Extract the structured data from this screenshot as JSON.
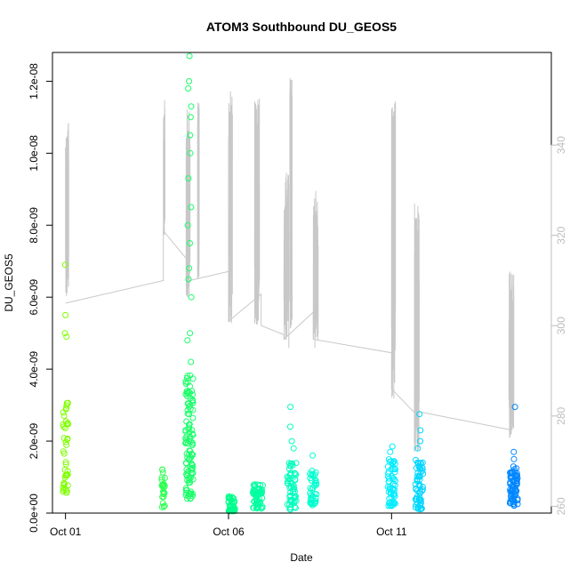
{
  "chart_data": {
    "type": "scatter",
    "title": "ATOM3 Southbound DU_GEOS5",
    "xlabel": "Date",
    "ylabel": "DU_GEOS5",
    "x_ticks": [
      {
        "value": 1,
        "label": "Oct 01"
      },
      {
        "value": 6,
        "label": "Oct 06"
      },
      {
        "value": 11,
        "label": "Oct 11"
      }
    ],
    "xlim": [
      0.6,
      15.9
    ],
    "ylim": [
      0,
      1.28e-08
    ],
    "y_ticks": [
      {
        "value": 0,
        "label": "0.0e+00"
      },
      {
        "value": 2e-09,
        "label": "2.0e-09"
      },
      {
        "value": 4e-09,
        "label": "4.0e-09"
      },
      {
        "value": 6e-09,
        "label": "6.0e-09"
      },
      {
        "value": 8e-09,
        "label": "8.0e-09"
      },
      {
        "value": 1e-08,
        "label": "1.0e-08"
      },
      {
        "value": 1.2e-08,
        "label": "1.2e-08"
      }
    ],
    "y2lim": [
      258.5,
      360.5
    ],
    "y2_ticks": [
      {
        "value": 260,
        "label": "260"
      },
      {
        "value": 280,
        "label": "280"
      },
      {
        "value": 300,
        "label": "300"
      },
      {
        "value": 320,
        "label": "320"
      },
      {
        "value": 340,
        "label": "340"
      }
    ],
    "grid": false,
    "colors": {
      "axis": "#000000",
      "right_axis": "#bdbdbd",
      "secondary_line": "#c8c8c8"
    },
    "secondary_series": {
      "type": "line",
      "axis": "right",
      "color": "#c8c8c8",
      "segments": [
        {
          "x": [
            1.0,
            1.1
          ],
          "y": [
            305,
            345
          ]
        },
        {
          "x": [
            4.0,
            4.05
          ],
          "y": [
            320,
            350
          ]
        },
        {
          "x": [
            4.7,
            4.82
          ],
          "y": [
            305,
            348
          ]
        },
        {
          "x": [
            5.05,
            5.1
          ],
          "y": [
            310,
            350
          ]
        },
        {
          "x": [
            6.0,
            6.12
          ],
          "y": [
            300,
            352
          ]
        },
        {
          "x": [
            6.8,
            6.95
          ],
          "y": [
            300,
            351
          ]
        },
        {
          "x": [
            7.7,
            7.85
          ],
          "y": [
            295,
            334
          ]
        },
        {
          "x": [
            7.88,
            7.95
          ],
          "y": [
            298,
            355
          ]
        },
        {
          "x": [
            8.6,
            8.75
          ],
          "y": [
            295,
            330
          ]
        },
        {
          "x": [
            11.0,
            11.12
          ],
          "y": [
            282,
            350
          ]
        },
        {
          "x": [
            11.7,
            11.85
          ],
          "y": [
            272,
            328
          ]
        },
        {
          "x": [
            14.6,
            14.75
          ],
          "y": [
            275,
            312
          ]
        }
      ],
      "connectors": {
        "x": [
          1.0,
          4.0,
          4.0,
          4.8,
          4.8,
          6.0,
          6.0,
          7.0,
          7.0,
          7.7,
          7.7,
          8.6,
          8.6,
          11.0,
          11.0,
          11.8,
          11.8,
          14.6
        ],
        "y": [
          305,
          310,
          321,
          314,
          310,
          312,
          301,
          307,
          300,
          298,
          297,
          303,
          297,
          294,
          286,
          280,
          281,
          277
        ]
      }
    },
    "points": {
      "color_gradient": [
        "#7fff00",
        "#00ff7f",
        "#00ffff",
        "#0080ff"
      ],
      "clusters": [
        {
          "x_center": 1.0,
          "x_spread": 0.08,
          "y_min": 5.5e-10,
          "y_max": 3.2e-09,
          "extra_high": [
            4.9e-09,
            5e-09,
            5.5e-09,
            6.9e-09
          ],
          "n": 40
        },
        {
          "x_center": 4.0,
          "x_spread": 0.05,
          "y_min": 1.5e-10,
          "y_max": 1.25e-09,
          "extra_high": [],
          "n": 25
        },
        {
          "x_center": 4.8,
          "x_spread": 0.12,
          "y_min": 4e-10,
          "y_max": 4e-09,
          "extra_high": [
            4.2e-09,
            4.8e-09,
            5e-09,
            6e-09,
            6.5e-09,
            6.8e-09,
            7.5e-09,
            8e-09,
            8.5e-09,
            9.3e-09,
            1e-08,
            1.05e-08,
            1.1e-08,
            1.13e-08,
            1.18e-08,
            1.2e-08,
            1.27e-08
          ],
          "n": 110
        },
        {
          "x_center": 6.1,
          "x_spread": 0.1,
          "y_min": 5e-11,
          "y_max": 5e-10,
          "extra_high": [],
          "n": 40
        },
        {
          "x_center": 6.9,
          "x_spread": 0.15,
          "y_min": 1e-10,
          "y_max": 8e-10,
          "extra_high": [],
          "n": 55
        },
        {
          "x_center": 7.95,
          "x_spread": 0.15,
          "y_min": 1e-10,
          "y_max": 1.4e-09,
          "extra_high": [
            1.8e-09,
            2e-09,
            2.4e-09,
            2.95e-09
          ],
          "n": 55
        },
        {
          "x_center": 8.6,
          "x_spread": 0.1,
          "y_min": 2e-10,
          "y_max": 1.2e-09,
          "extra_high": [
            1.6e-09
          ],
          "n": 40
        },
        {
          "x_center": 11.0,
          "x_spread": 0.12,
          "y_min": 2e-10,
          "y_max": 1.5e-09,
          "extra_high": [
            1.7e-09,
            1.85e-09
          ],
          "n": 55
        },
        {
          "x_center": 11.85,
          "x_spread": 0.12,
          "y_min": 1e-10,
          "y_max": 1.5e-09,
          "extra_high": [
            1.8e-09,
            2e-09,
            2.3e-09,
            2.75e-09
          ],
          "n": 60
        },
        {
          "x_center": 14.75,
          "x_spread": 0.12,
          "y_min": 2e-10,
          "y_max": 1.3e-09,
          "extra_high": [
            1.5e-09,
            1.7e-09,
            2.95e-09
          ],
          "n": 70
        }
      ]
    }
  }
}
